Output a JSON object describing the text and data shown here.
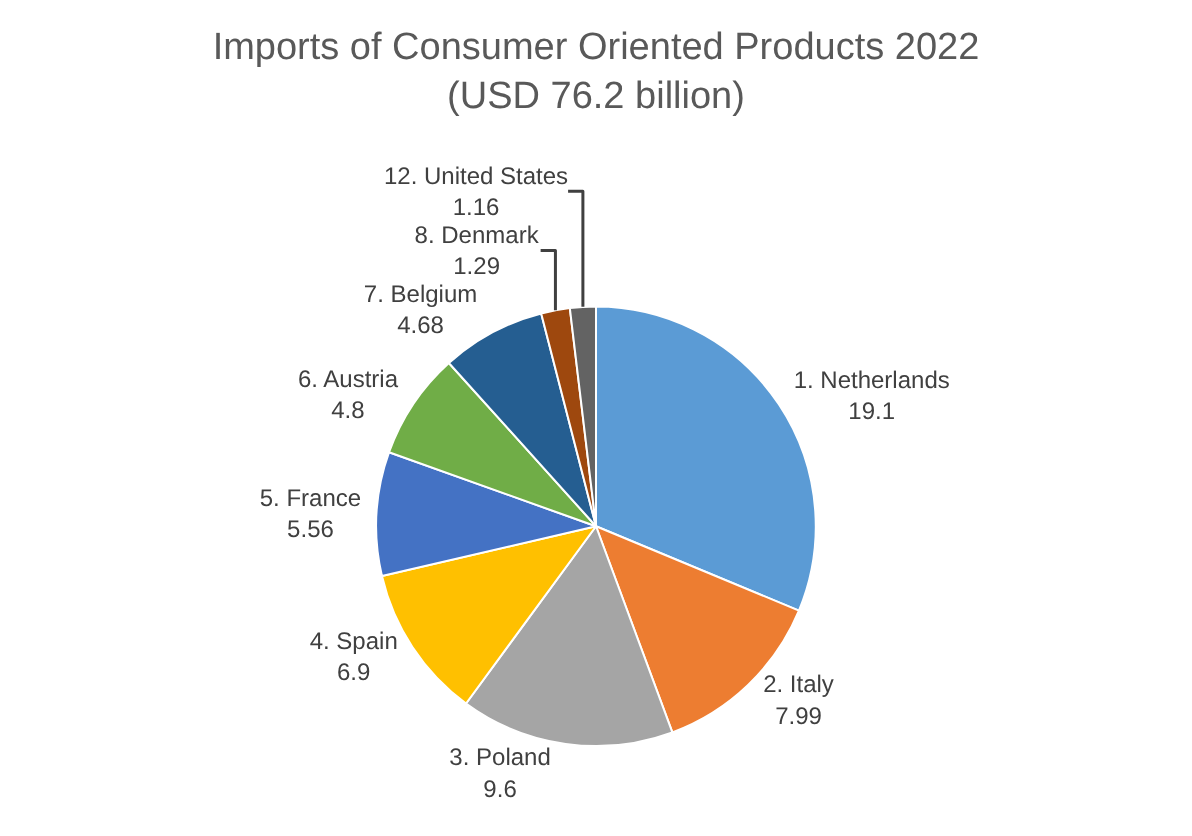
{
  "chart_data": {
    "type": "pie",
    "title": "Imports of Consumer Oriented Products 2022\n(USD 76.2 billion)",
    "categories": [
      "1. Netherlands",
      "2. Italy",
      "3. Poland",
      "4. Spain",
      "5. France",
      "6. Austria",
      "7. Belgium",
      "8. Denmark",
      "12. United States"
    ],
    "values": [
      19.1,
      7.99,
      9.6,
      6.9,
      5.56,
      4.8,
      4.68,
      1.29,
      1.16
    ],
    "colors": [
      "#5b9bd5",
      "#ed7d31",
      "#a5a5a5",
      "#ffc000",
      "#4472c4",
      "#70ad47",
      "#255e91",
      "#9e480e",
      "#636363"
    ],
    "data_labels": true,
    "legend": false
  }
}
